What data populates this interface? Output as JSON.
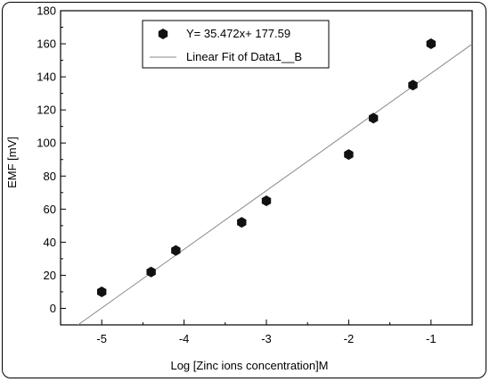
{
  "chart_data": {
    "type": "scatter",
    "xlabel": "Log [Zinc ions concentration]M",
    "ylabel": "EMF [mV]",
    "xlim": [
      -5.5,
      -0.5
    ],
    "ylim": [
      -10,
      180
    ],
    "xticks": [
      -5,
      -4,
      -3,
      -2,
      -1
    ],
    "yticks": [
      0,
      20,
      40,
      60,
      80,
      100,
      120,
      140,
      160,
      180
    ],
    "grid": false,
    "legend_position": "top-center",
    "series": [
      {
        "name": "Y= 35.472x+ 177.59",
        "kind": "scatter",
        "marker": "hexagon",
        "x": [
          -5.0,
          -4.4,
          -4.1,
          -3.3,
          -3.0,
          -2.0,
          -1.7,
          -1.22,
          -1.0
        ],
        "y": [
          10,
          22,
          35,
          52,
          65,
          93,
          115,
          135,
          160
        ]
      },
      {
        "name": "Linear Fit of Data1__B",
        "kind": "line",
        "slope": 35.472,
        "intercept": 177.59
      }
    ]
  },
  "colors": {
    "marker": "#111111",
    "fit_line": "#8a8a8a",
    "axis": "#000000"
  }
}
